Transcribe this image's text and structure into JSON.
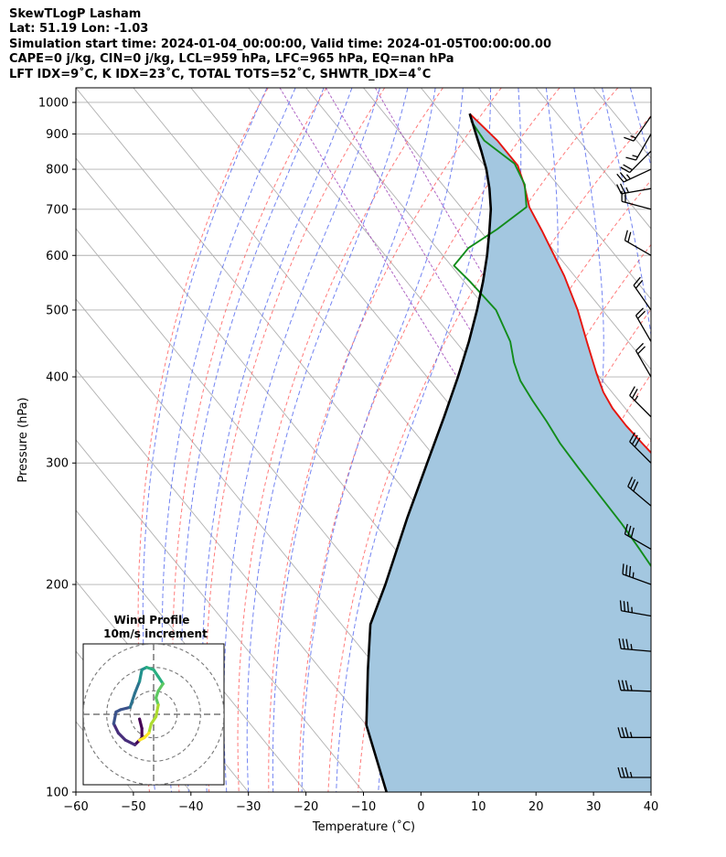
{
  "header": {
    "line1": "SkewTLogP Lasham",
    "line2": "Lat: 51.19   Lon: -1.03",
    "line3": "Simulation start time: 2024-01-04_00:00:00, Valid time: 2024-01-05T00:00:00.00",
    "line4": "CAPE=0 j/kg, CIN=0 j/kg, LCL=959 hPa, LFC=965 hPa, EQ=nan hPa",
    "line5": "LFT IDX=9˚C, K IDX=23˚C, TOTAL TOTS=52˚C, SHWTR_IDX=4˚C"
  },
  "chart_data": {
    "type": "line",
    "subtype": "skew-t log-p",
    "xlabel": "Temperature (˚C)",
    "ylabel": "Pressure (hPa)",
    "xlim": [
      -60,
      40
    ],
    "ylim": [
      1050,
      100
    ],
    "yscale": "log",
    "xticks": [
      "−60",
      "−50",
      "−40",
      "−30",
      "−20",
      "−10",
      "0",
      "10",
      "20",
      "30",
      "40"
    ],
    "yticks": [
      "100",
      "200",
      "300",
      "400",
      "500",
      "600",
      "700",
      "800",
      "900",
      "1000"
    ],
    "grid": true,
    "series": [
      {
        "role": "temperature",
        "color": "#e6150f",
        "points": [
          [
            4.8,
            963
          ],
          [
            5.8,
            880
          ],
          [
            5.8,
            810
          ],
          [
            4.2,
            760
          ],
          [
            1.9,
            705
          ],
          [
            0.7,
            650
          ],
          [
            -1.8,
            560
          ],
          [
            -4.3,
            500
          ],
          [
            -7.2,
            450
          ],
          [
            -10.0,
            405
          ],
          [
            -11.5,
            380
          ],
          [
            -12.2,
            360
          ],
          [
            -12.3,
            340
          ],
          [
            -12.0,
            320
          ],
          [
            -11.5,
            295
          ],
          [
            -10.5,
            270
          ],
          [
            -8.5,
            250
          ],
          [
            -6.0,
            230
          ],
          [
            -3.5,
            210
          ],
          [
            -0.8,
            195
          ],
          [
            2.0,
            180
          ],
          [
            4.5,
            165
          ],
          [
            6.5,
            150
          ],
          [
            8.5,
            140
          ],
          [
            10.5,
            130
          ],
          [
            12.8,
            120
          ],
          [
            15.0,
            110
          ],
          [
            17.5,
            100
          ]
        ]
      },
      {
        "role": "dewpoint",
        "color": "#128c1b",
        "points": [
          [
            4.0,
            940
          ],
          [
            3.5,
            880
          ],
          [
            5.5,
            815
          ],
          [
            4.3,
            760
          ],
          [
            1.4,
            705
          ],
          [
            -6.8,
            655
          ],
          [
            -14.5,
            615
          ],
          [
            -19.5,
            580
          ],
          [
            -19.0,
            550
          ],
          [
            -18.5,
            500
          ],
          [
            -20.5,
            450
          ],
          [
            -22.8,
            420
          ],
          [
            -24.3,
            395
          ],
          [
            -25.0,
            370
          ],
          [
            -25.5,
            345
          ],
          [
            -26.3,
            320
          ],
          [
            -26.6,
            295
          ],
          [
            -26.8,
            270
          ],
          [
            -27.0,
            245
          ],
          [
            -27.5,
            225
          ],
          [
            -28.0,
            210
          ],
          [
            -27.6,
            195
          ],
          [
            -26.5,
            180
          ],
          [
            -25.0,
            170
          ],
          [
            -22.0,
            155
          ],
          [
            -18.0,
            140
          ],
          [
            -14.0,
            128
          ],
          [
            -10.0,
            118
          ],
          [
            -7.0,
            110
          ],
          [
            -4.0,
            100
          ]
        ]
      },
      {
        "role": "parcel",
        "color": "#000000",
        "points": [
          [
            4.8,
            963
          ],
          [
            3.0,
            900
          ],
          [
            1.5,
            850
          ],
          [
            -0.2,
            800
          ],
          [
            -2.4,
            750
          ],
          [
            -5.1,
            700
          ],
          [
            -8.5,
            650
          ],
          [
            -12.3,
            600
          ],
          [
            -16.7,
            550
          ],
          [
            -21.8,
            500
          ],
          [
            -27.7,
            450
          ],
          [
            -34.6,
            400
          ],
          [
            -42.7,
            350
          ],
          [
            -52.2,
            300
          ],
          [
            -63.4,
            250
          ],
          [
            -76.7,
            200
          ],
          [
            -85.0,
            175
          ],
          [
            -92.0,
            150
          ],
          [
            -100.0,
            125
          ],
          [
            -106.0,
            100
          ]
        ]
      }
    ],
    "shaded_region": {
      "between": [
        "temperature",
        "parcel"
      ],
      "color": "#a3c7e0"
    },
    "wind_barbs": [
      {
        "p": 955,
        "dir": 215,
        "speed_kt": 15
      },
      {
        "p": 900,
        "dir": 210,
        "speed_kt": 15
      },
      {
        "p": 850,
        "dir": 225,
        "speed_kt": 20
      },
      {
        "p": 800,
        "dir": 245,
        "speed_kt": 25
      },
      {
        "p": 750,
        "dir": 260,
        "speed_kt": 25
      },
      {
        "p": 700,
        "dir": 285,
        "speed_kt": 20
      },
      {
        "p": 600,
        "dir": 300,
        "speed_kt": 20
      },
      {
        "p": 500,
        "dir": 325,
        "speed_kt": 20
      },
      {
        "p": 450,
        "dir": 330,
        "speed_kt": 20
      },
      {
        "p": 400,
        "dir": 330,
        "speed_kt": 20
      },
      {
        "p": 350,
        "dir": 315,
        "speed_kt": 25
      },
      {
        "p": 300,
        "dir": 315,
        "speed_kt": 30
      },
      {
        "p": 260,
        "dir": 310,
        "speed_kt": 30
      },
      {
        "p": 225,
        "dir": 300,
        "speed_kt": 30
      },
      {
        "p": 200,
        "dir": 290,
        "speed_kt": 35
      },
      {
        "p": 180,
        "dir": 280,
        "speed_kt": 35
      },
      {
        "p": 160,
        "dir": 275,
        "speed_kt": 35
      },
      {
        "p": 140,
        "dir": 272,
        "speed_kt": 35
      },
      {
        "p": 120,
        "dir": 270,
        "speed_kt": 35
      },
      {
        "p": 105,
        "dir": 270,
        "speed_kt": 35
      }
    ],
    "hodograph": {
      "title": "Wind Profile",
      "subtitle": "10m/s increment",
      "ring_spacing_ms": 10,
      "xlim": [
        -30,
        30
      ],
      "ylim": [
        -30,
        30
      ],
      "points": [
        [
          -6,
          -2
        ],
        [
          -5,
          -6
        ],
        [
          -5,
          -10
        ],
        [
          -8,
          -13
        ],
        [
          -12,
          -11
        ],
        [
          -15,
          -8
        ],
        [
          -17,
          -4
        ],
        [
          -16,
          1
        ],
        [
          -14,
          2
        ],
        [
          -10,
          3
        ],
        [
          -9,
          6
        ],
        [
          -8,
          9
        ],
        [
          -6,
          14
        ],
        [
          -5,
          19
        ],
        [
          -3,
          20
        ],
        [
          0,
          19
        ],
        [
          2,
          16
        ],
        [
          4,
          13
        ],
        [
          2,
          10
        ],
        [
          1,
          7
        ],
        [
          2,
          4
        ],
        [
          1,
          -1
        ],
        [
          -1,
          -4
        ],
        [
          -2,
          -8
        ],
        [
          -4,
          -10
        ],
        [
          -6,
          -11
        ]
      ]
    }
  }
}
